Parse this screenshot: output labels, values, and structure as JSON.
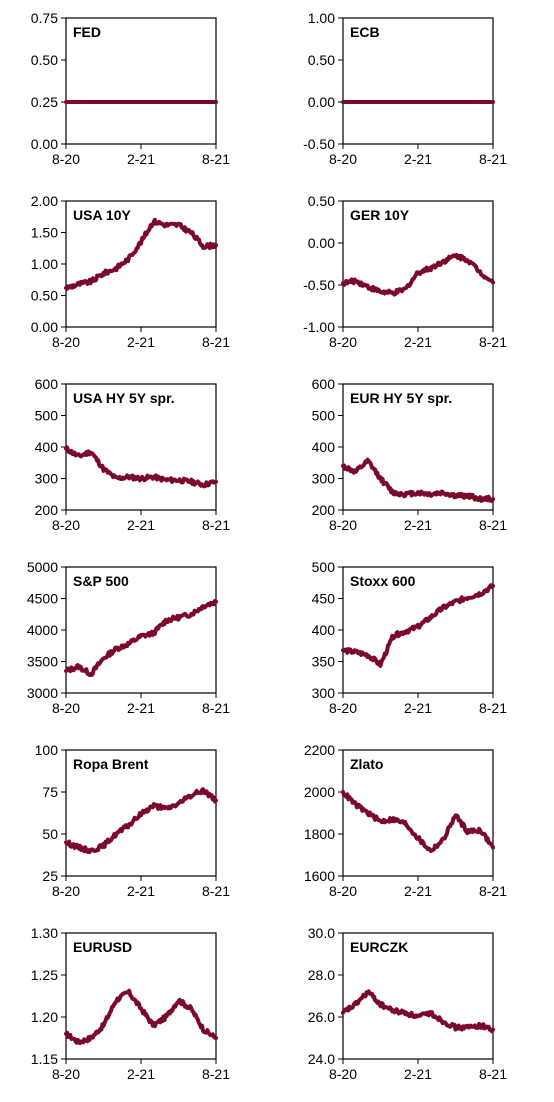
{
  "chart_data": [
    {
      "type": "line",
      "title": "FED",
      "ylim": [
        0,
        0.75
      ],
      "yticks": [
        "0.00",
        "0.25",
        "0.50",
        "0.75"
      ],
      "xticks": [
        "8-20",
        "2-21",
        "8-21"
      ],
      "x": [
        "8-20",
        "2-21",
        "8-21"
      ],
      "series": [
        {
          "values": [
            0.25,
            0.25,
            0.25
          ]
        }
      ]
    },
    {
      "type": "line",
      "title": "ECB",
      "ylim": [
        -0.5,
        1.0
      ],
      "yticks": [
        "-0.50",
        "0.00",
        "0.50",
        "1.00"
      ],
      "xticks": [
        "8-20",
        "2-21",
        "8-21"
      ],
      "x": [
        "8-20",
        "2-21",
        "8-21"
      ],
      "series": [
        {
          "values": [
            0.0,
            0.0,
            0.0
          ]
        }
      ]
    },
    {
      "type": "line",
      "title": "USA 10Y",
      "ylim": [
        0,
        2.0
      ],
      "yticks": [
        "0.00",
        "0.50",
        "1.00",
        "1.50",
        "2.00"
      ],
      "xticks": [
        "8-20",
        "2-21",
        "8-21"
      ],
      "x": [
        "8-20",
        "9-20",
        "10-20",
        "11-20",
        "12-20",
        "1-21",
        "2-21",
        "3-21",
        "4-21",
        "5-21",
        "6-21",
        "7-21",
        "8-21"
      ],
      "series": [
        {
          "values": [
            0.62,
            0.68,
            0.72,
            0.85,
            0.93,
            1.08,
            1.35,
            1.68,
            1.62,
            1.62,
            1.5,
            1.28,
            1.3
          ]
        }
      ]
    },
    {
      "type": "line",
      "title": "GER 10Y",
      "ylim": [
        -1.0,
        0.5
      ],
      "yticks": [
        "-1.00",
        "-0.50",
        "0.00",
        "0.50"
      ],
      "xticks": [
        "8-20",
        "2-21",
        "8-21"
      ],
      "x": [
        "8-20",
        "9-20",
        "10-20",
        "11-20",
        "12-20",
        "1-21",
        "2-21",
        "3-21",
        "4-21",
        "5-21",
        "6-21",
        "7-21",
        "8-21"
      ],
      "series": [
        {
          "values": [
            -0.48,
            -0.45,
            -0.52,
            -0.58,
            -0.6,
            -0.55,
            -0.35,
            -0.3,
            -0.22,
            -0.15,
            -0.2,
            -0.35,
            -0.47
          ]
        }
      ]
    },
    {
      "type": "line",
      "title": "USA HY 5Y spr.",
      "ylim": [
        200,
        600
      ],
      "yticks": [
        "200",
        "300",
        "400",
        "500",
        "600"
      ],
      "xticks": [
        "8-20",
        "2-21",
        "8-21"
      ],
      "x": [
        "8-20",
        "9-20",
        "10-20",
        "11-20",
        "12-20",
        "1-21",
        "2-21",
        "3-21",
        "4-21",
        "5-21",
        "6-21",
        "7-21",
        "8-21"
      ],
      "series": [
        {
          "values": [
            395,
            370,
            385,
            330,
            300,
            305,
            300,
            305,
            295,
            295,
            290,
            280,
            290
          ]
        }
      ]
    },
    {
      "type": "line",
      "title": "EUR HY 5Y spr.",
      "ylim": [
        200,
        600
      ],
      "yticks": [
        "200",
        "300",
        "400",
        "500",
        "600"
      ],
      "xticks": [
        "8-20",
        "2-21",
        "8-21"
      ],
      "x": [
        "8-20",
        "9-20",
        "10-20",
        "11-20",
        "12-20",
        "1-21",
        "2-21",
        "3-21",
        "4-21",
        "5-21",
        "6-21",
        "7-21",
        "8-21"
      ],
      "series": [
        {
          "values": [
            340,
            320,
            355,
            300,
            255,
            250,
            255,
            250,
            255,
            245,
            245,
            235,
            235
          ]
        }
      ]
    },
    {
      "type": "line",
      "title": "S&P 500",
      "ylim": [
        3000,
        5000
      ],
      "yticks": [
        "3000",
        "3500",
        "4000",
        "4500",
        "5000"
      ],
      "xticks": [
        "8-20",
        "2-21",
        "8-21"
      ],
      "x": [
        "8-20",
        "9-20",
        "10-20",
        "11-20",
        "12-20",
        "1-21",
        "2-21",
        "3-21",
        "4-21",
        "5-21",
        "6-21",
        "7-21",
        "8-21"
      ],
      "series": [
        {
          "values": [
            3350,
            3420,
            3300,
            3550,
            3700,
            3780,
            3900,
            3950,
            4150,
            4200,
            4250,
            4380,
            4450
          ]
        }
      ]
    },
    {
      "type": "line",
      "title": "Stoxx 600",
      "ylim": [
        300,
        500
      ],
      "yticks": [
        "300",
        "350",
        "400",
        "450",
        "500"
      ],
      "xticks": [
        "8-20",
        "2-21",
        "8-21"
      ],
      "x": [
        "8-20",
        "9-20",
        "10-20",
        "11-20",
        "12-20",
        "1-21",
        "2-21",
        "3-21",
        "4-21",
        "5-21",
        "6-21",
        "7-21",
        "8-21"
      ],
      "series": [
        {
          "values": [
            368,
            365,
            360,
            345,
            390,
            398,
            405,
            420,
            435,
            445,
            452,
            458,
            470
          ]
        }
      ]
    },
    {
      "type": "line",
      "title": "Ropa Brent",
      "ylim": [
        25,
        100
      ],
      "yticks": [
        "25",
        "50",
        "75",
        "100"
      ],
      "xticks": [
        "8-20",
        "2-21",
        "8-21"
      ],
      "x": [
        "8-20",
        "9-20",
        "10-20",
        "11-20",
        "12-20",
        "1-21",
        "2-21",
        "3-21",
        "4-21",
        "5-21",
        "6-21",
        "7-21",
        "8-21"
      ],
      "series": [
        {
          "values": [
            45,
            42,
            40,
            43,
            50,
            55,
            62,
            67,
            65,
            68,
            73,
            76,
            70
          ]
        }
      ]
    },
    {
      "type": "line",
      "title": "Zlato",
      "ylim": [
        1600,
        2200
      ],
      "yticks": [
        "1600",
        "1800",
        "2000",
        "2200"
      ],
      "xticks": [
        "8-20",
        "2-21",
        "8-21"
      ],
      "x": [
        "8-20",
        "9-20",
        "10-20",
        "11-20",
        "12-20",
        "1-21",
        "2-21",
        "3-21",
        "4-21",
        "5-21",
        "6-21",
        "7-21",
        "8-21"
      ],
      "series": [
        {
          "values": [
            2000,
            1940,
            1900,
            1860,
            1870,
            1850,
            1780,
            1720,
            1770,
            1890,
            1810,
            1820,
            1735
          ]
        }
      ]
    },
    {
      "type": "line",
      "title": "EURUSD",
      "ylim": [
        1.15,
        1.3
      ],
      "yticks": [
        "1.15",
        "1.20",
        "1.25",
        "1.30"
      ],
      "xticks": [
        "8-20",
        "2-21",
        "8-21"
      ],
      "x": [
        "8-20",
        "9-20",
        "10-20",
        "11-20",
        "12-20",
        "1-21",
        "2-21",
        "3-21",
        "4-21",
        "5-21",
        "6-21",
        "7-21",
        "8-21"
      ],
      "series": [
        {
          "values": [
            1.18,
            1.17,
            1.175,
            1.19,
            1.22,
            1.23,
            1.21,
            1.19,
            1.2,
            1.22,
            1.21,
            1.185,
            1.175
          ]
        }
      ]
    },
    {
      "type": "line",
      "title": "EURCZK",
      "ylim": [
        24.0,
        30.0
      ],
      "yticks": [
        "24.0",
        "26.0",
        "28.0",
        "30.0"
      ],
      "xticks": [
        "8-20",
        "2-21",
        "8-21"
      ],
      "x": [
        "8-20",
        "9-20",
        "10-20",
        "11-20",
        "12-20",
        "1-21",
        "2-21",
        "3-21",
        "4-21",
        "5-21",
        "6-21",
        "7-21",
        "8-21"
      ],
      "series": [
        {
          "values": [
            26.2,
            26.6,
            27.2,
            26.6,
            26.3,
            26.2,
            26.0,
            26.2,
            25.8,
            25.5,
            25.5,
            25.6,
            25.4
          ]
        }
      ]
    }
  ],
  "colors": {
    "series": "#7b0a2a"
  }
}
